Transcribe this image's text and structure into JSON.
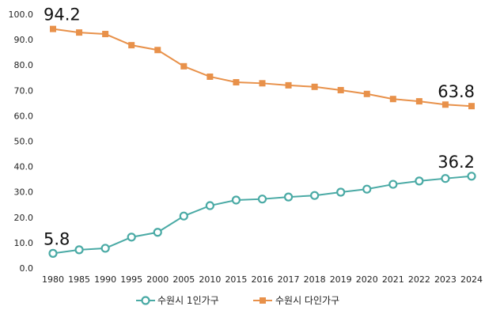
{
  "chart_data": {
    "type": "line",
    "title": "",
    "xlabel": "",
    "ylabel": "",
    "ylim": [
      0,
      100
    ],
    "yticks": [
      "0.0",
      "10.0",
      "20.0",
      "30.0",
      "40.0",
      "50.0",
      "60.0",
      "70.0",
      "80.0",
      "90.0",
      "100.0"
    ],
    "categories": [
      "1980",
      "1985",
      "1990",
      "1995",
      "2000",
      "2005",
      "2010",
      "2015",
      "2016",
      "2017",
      "2018",
      "2019",
      "2020",
      "2021",
      "2022",
      "2023",
      "2024"
    ],
    "series": [
      {
        "name": "수원시 1인가구",
        "color": "#4aaaa5",
        "marker": "circle",
        "values": [
          5.8,
          7.2,
          7.8,
          12.2,
          14.1,
          20.5,
          24.6,
          26.8,
          27.2,
          28.0,
          28.6,
          29.9,
          31.1,
          33.0,
          34.3,
          35.3,
          36.2
        ]
      },
      {
        "name": "수원시 다인가구",
        "color": "#e8914a",
        "marker": "square",
        "values": [
          94.2,
          92.8,
          92.2,
          87.8,
          85.9,
          79.5,
          75.4,
          73.2,
          72.8,
          72.0,
          71.4,
          70.1,
          68.6,
          66.6,
          65.7,
          64.4,
          63.8
        ]
      }
    ],
    "annotations": [
      {
        "series": 1,
        "index": 0,
        "text": "94.2"
      },
      {
        "series": 1,
        "index": 16,
        "text": "63.8"
      },
      {
        "series": 0,
        "index": 0,
        "text": "5.8"
      },
      {
        "series": 0,
        "index": 16,
        "text": "36.2"
      }
    ],
    "grid": false,
    "legend": "bottom"
  }
}
